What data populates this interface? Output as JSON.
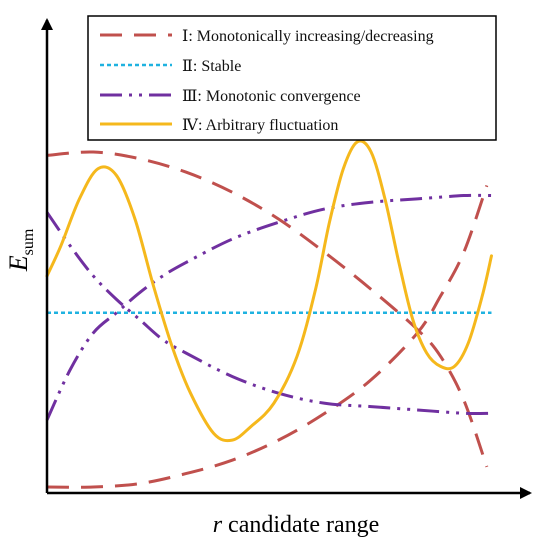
{
  "chart_data": {
    "type": "line",
    "title": "",
    "xlabel": "r candidate range",
    "xlabel_parts": {
      "var": "r",
      "rest": " candidate range"
    },
    "ylabel": "E_sum",
    "ylabel_parts": {
      "var": "E",
      "sub": "sum"
    },
    "xlim": [
      0,
      1
    ],
    "ylim": [
      0,
      1
    ],
    "grid": false,
    "legend_position": "top-right",
    "series": [
      {
        "name": "Ⅰ: Monotonically increasing/decreasing",
        "color": "#C0504D",
        "style": "dashed",
        "lines": [
          [
            [
              0.0,
              0.99
            ],
            [
              0.1,
              1.0
            ],
            [
              0.2,
              0.98
            ],
            [
              0.3,
              0.94
            ],
            [
              0.4,
              0.88
            ],
            [
              0.5,
              0.8
            ],
            [
              0.6,
              0.7
            ],
            [
              0.7,
              0.59
            ],
            [
              0.8,
              0.47
            ],
            [
              0.85,
              0.39
            ],
            [
              0.9,
              0.26
            ],
            [
              0.95,
              0.06
            ]
          ],
          [
            [
              0.0,
              0.0
            ],
            [
              0.1,
              0.0
            ],
            [
              0.2,
              0.01
            ],
            [
              0.3,
              0.04
            ],
            [
              0.4,
              0.08
            ],
            [
              0.5,
              0.14
            ],
            [
              0.6,
              0.22
            ],
            [
              0.7,
              0.32
            ],
            [
              0.8,
              0.46
            ],
            [
              0.85,
              0.57
            ],
            [
              0.9,
              0.7
            ],
            [
              0.95,
              0.9
            ]
          ]
        ]
      },
      {
        "name": "Ⅱ: Stable",
        "color": "#1FB2E0",
        "style": "dotted",
        "lines": [
          [
            [
              0.0,
              0.52
            ],
            [
              0.96,
              0.52
            ]
          ]
        ]
      },
      {
        "name": "Ⅲ: Monotonic convergence",
        "color": "#7030A0",
        "style": "dash-dot",
        "lines": [
          [
            [
              0.0,
              0.82
            ],
            [
              0.05,
              0.72
            ],
            [
              0.1,
              0.63
            ],
            [
              0.15,
              0.56
            ],
            [
              0.2,
              0.5
            ],
            [
              0.25,
              0.44
            ],
            [
              0.3,
              0.4
            ],
            [
              0.4,
              0.33
            ],
            [
              0.5,
              0.28
            ],
            [
              0.6,
              0.25
            ],
            [
              0.7,
              0.24
            ],
            [
              0.8,
              0.23
            ],
            [
              0.9,
              0.22
            ],
            [
              0.96,
              0.22
            ]
          ],
          [
            [
              0.0,
              0.2
            ],
            [
              0.05,
              0.35
            ],
            [
              0.1,
              0.46
            ],
            [
              0.15,
              0.52
            ],
            [
              0.2,
              0.58
            ],
            [
              0.25,
              0.63
            ],
            [
              0.3,
              0.67
            ],
            [
              0.4,
              0.74
            ],
            [
              0.5,
              0.79
            ],
            [
              0.6,
              0.83
            ],
            [
              0.7,
              0.85
            ],
            [
              0.8,
              0.86
            ],
            [
              0.9,
              0.87
            ],
            [
              0.96,
              0.87
            ]
          ]
        ]
      },
      {
        "name": "Ⅳ: Arbitrary fluctuation",
        "color": "#F5B81C",
        "style": "solid",
        "lines": [
          [
            [
              0.0,
              0.63
            ],
            [
              0.03,
              0.72
            ],
            [
              0.07,
              0.86
            ],
            [
              0.11,
              0.95
            ],
            [
              0.15,
              0.93
            ],
            [
              0.19,
              0.8
            ],
            [
              0.23,
              0.6
            ],
            [
              0.27,
              0.42
            ],
            [
              0.31,
              0.28
            ],
            [
              0.36,
              0.16
            ],
            [
              0.4,
              0.14
            ],
            [
              0.44,
              0.18
            ],
            [
              0.49,
              0.25
            ],
            [
              0.54,
              0.39
            ],
            [
              0.58,
              0.59
            ],
            [
              0.61,
              0.79
            ],
            [
              0.64,
              0.95
            ],
            [
              0.67,
              1.03
            ],
            [
              0.7,
              1.0
            ],
            [
              0.73,
              0.86
            ],
            [
              0.76,
              0.67
            ],
            [
              0.79,
              0.5
            ],
            [
              0.82,
              0.4
            ],
            [
              0.85,
              0.36
            ],
            [
              0.88,
              0.36
            ],
            [
              0.91,
              0.43
            ],
            [
              0.94,
              0.57
            ],
            [
              0.96,
              0.69
            ]
          ]
        ]
      }
    ]
  }
}
